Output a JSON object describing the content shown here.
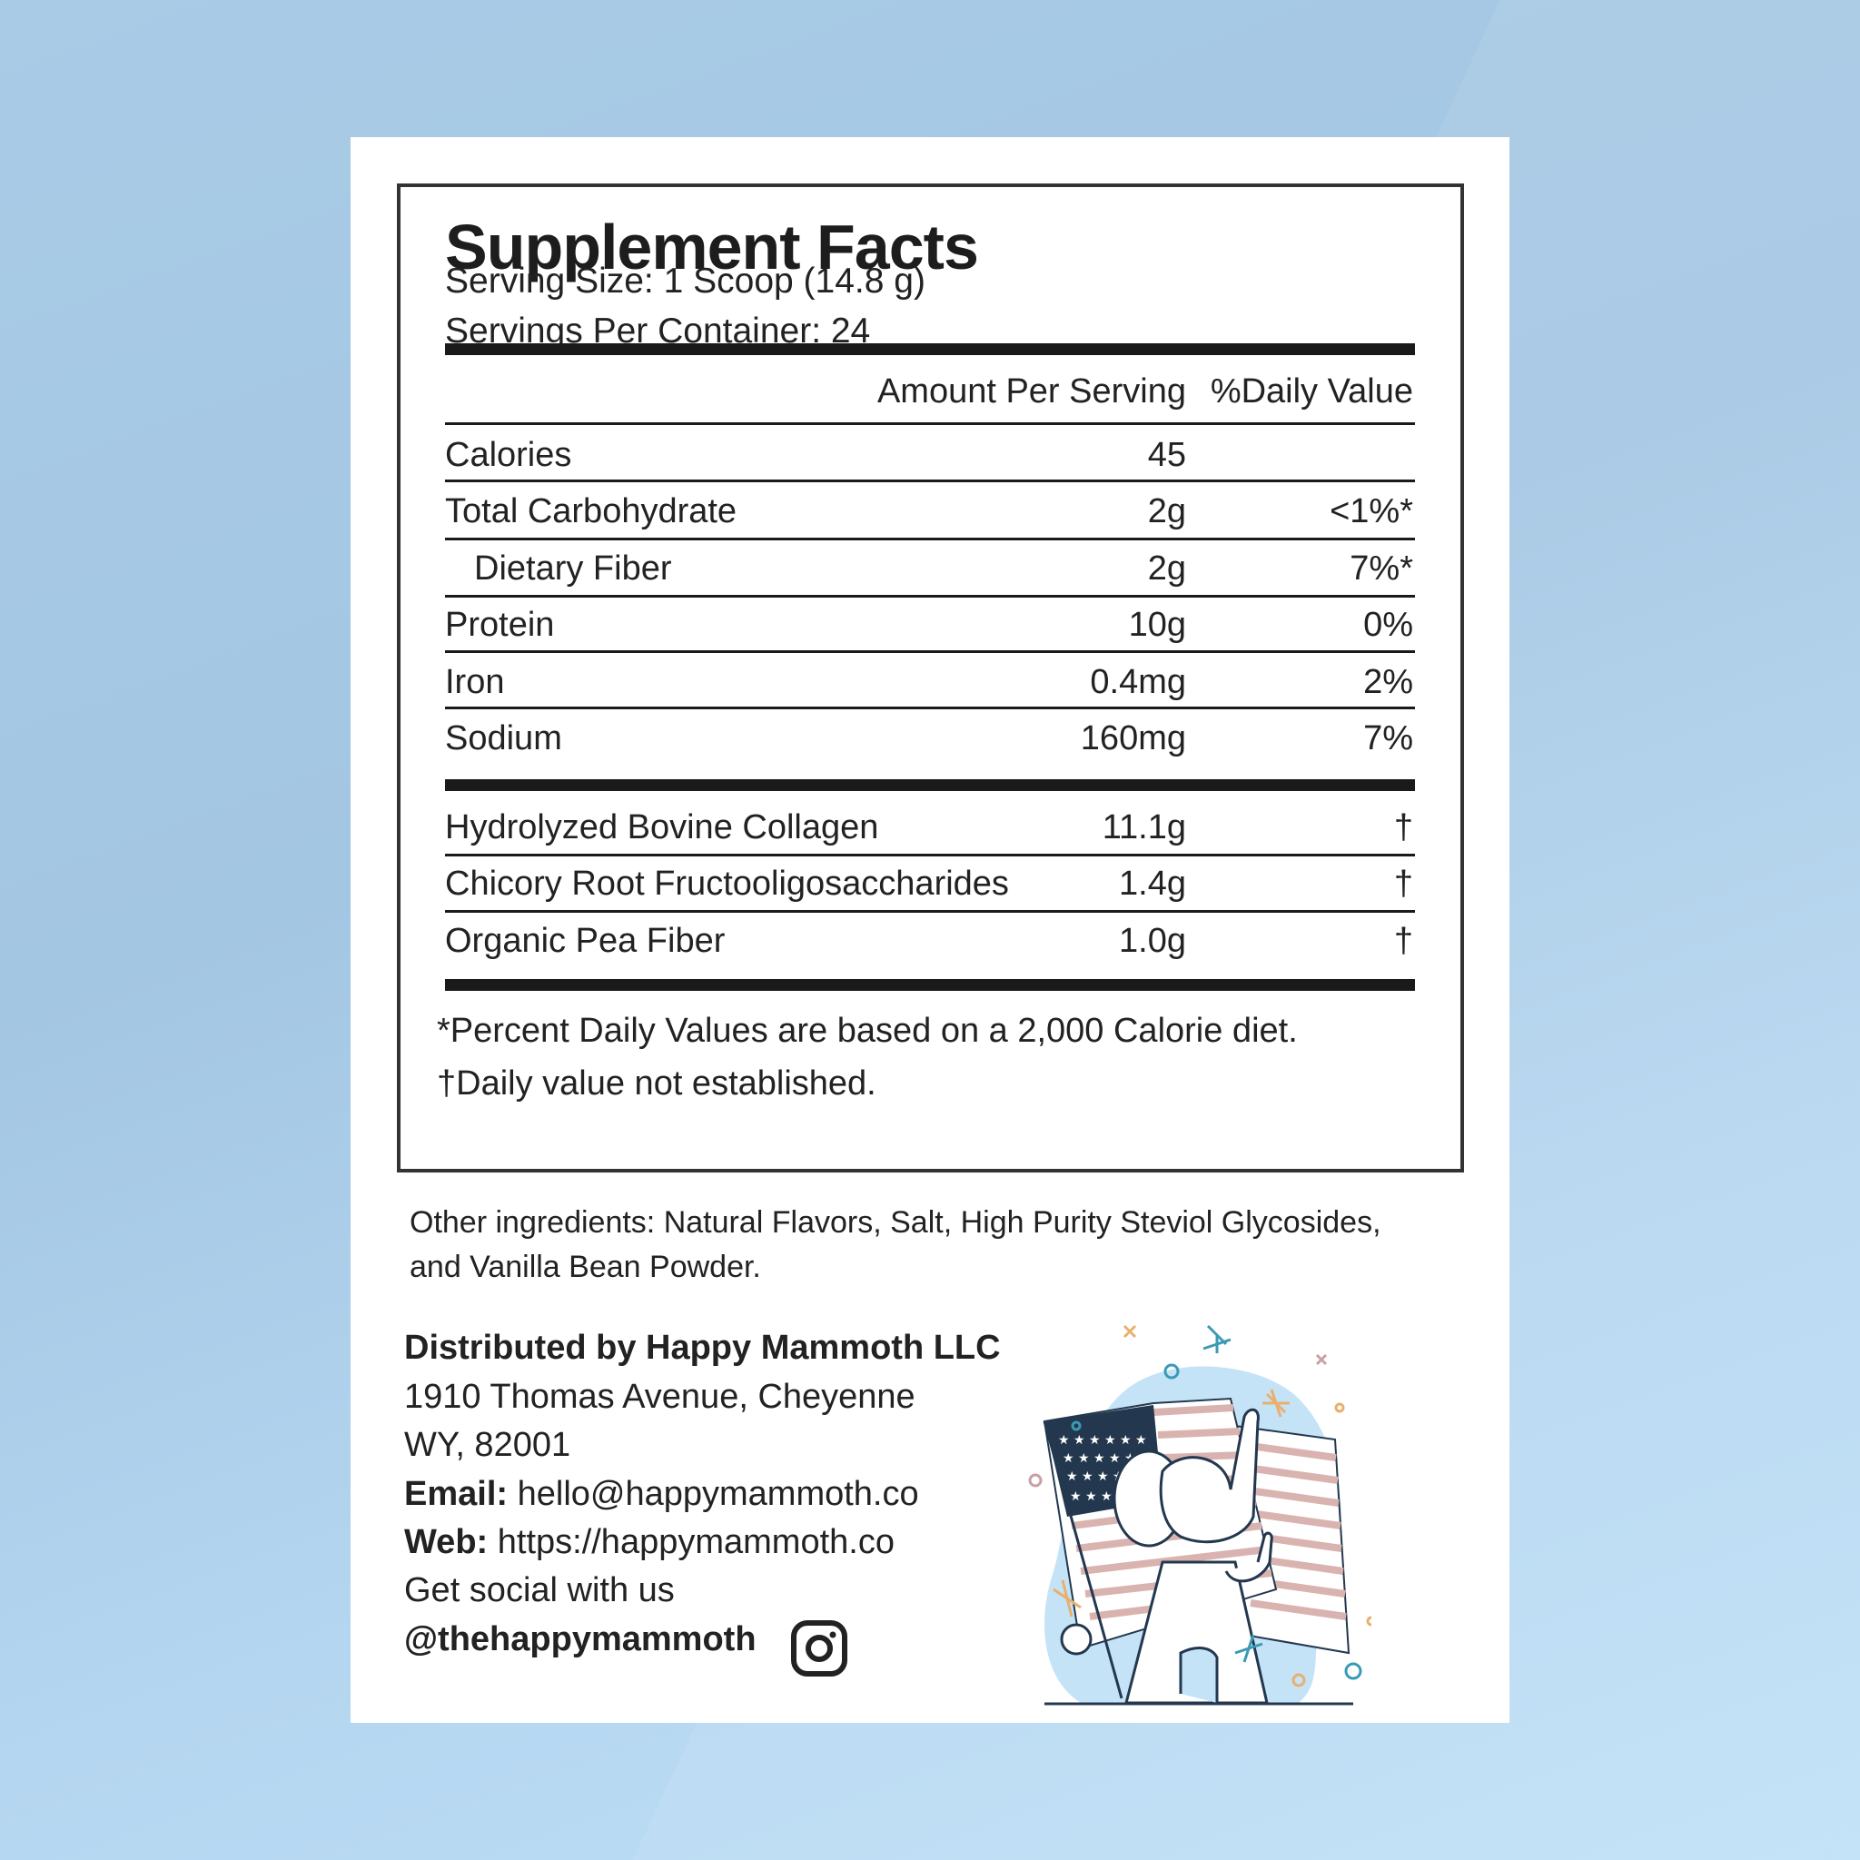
{
  "panel": {
    "title": "Supplement Facts",
    "serving_size": "Serving Size: 1 Scoop (14.8 g)",
    "servings_per_container": "Servings Per Container: 24",
    "header": {
      "amount": "Amount Per Serving",
      "daily_value": "%Daily Value"
    },
    "nutrients": [
      {
        "name": "Calories",
        "amount": "45",
        "dv": ""
      },
      {
        "name": "Total Carbohydrate",
        "amount": "2g",
        "dv": "<1%*"
      },
      {
        "name": "Dietary Fiber",
        "amount": "2g",
        "dv": "7%*"
      },
      {
        "name": "Protein",
        "amount": "10g",
        "dv": "0%"
      },
      {
        "name": "Iron",
        "amount": "0.4mg",
        "dv": "2%"
      },
      {
        "name": "Sodium",
        "amount": "160mg",
        "dv": "7%"
      }
    ],
    "ingredients": [
      {
        "name": "Hydrolyzed Bovine Collagen",
        "amount": "11.1g",
        "dv": "†"
      },
      {
        "name": "Chicory Root Fructooligosaccharides",
        "amount": "1.4g",
        "dv": "†"
      },
      {
        "name": "Organic Pea Fiber",
        "amount": "1.0g",
        "dv": "†"
      }
    ],
    "footnotes": [
      "*Percent Daily Values are based on a 2,000 Calorie diet.",
      "†Daily value not established."
    ]
  },
  "other_ingredients": [
    "Other ingredients: Natural Flavors, Salt, High Purity Steviol Glycosides,",
    "and Vanilla Bean Powder."
  ],
  "distributor": {
    "name": "Distributed by Happy Mammoth LLC",
    "address1": "1910 Thomas Avenue, Cheyenne",
    "address2": "WY, 82001",
    "email_label": "Email:",
    "email": "hello@happymammoth.co",
    "web_label": "Web:",
    "web": "https://happymammoth.co",
    "social": "Get social with us",
    "handle": "@thehappymammoth",
    "social_icon": "instagram-icon"
  },
  "colors": {
    "background": "#a9cbe6",
    "ink": "#222222",
    "flag_navy": "#23384f",
    "flag_stripe": "#d9b3b0",
    "blob": "#c5e3f7"
  }
}
